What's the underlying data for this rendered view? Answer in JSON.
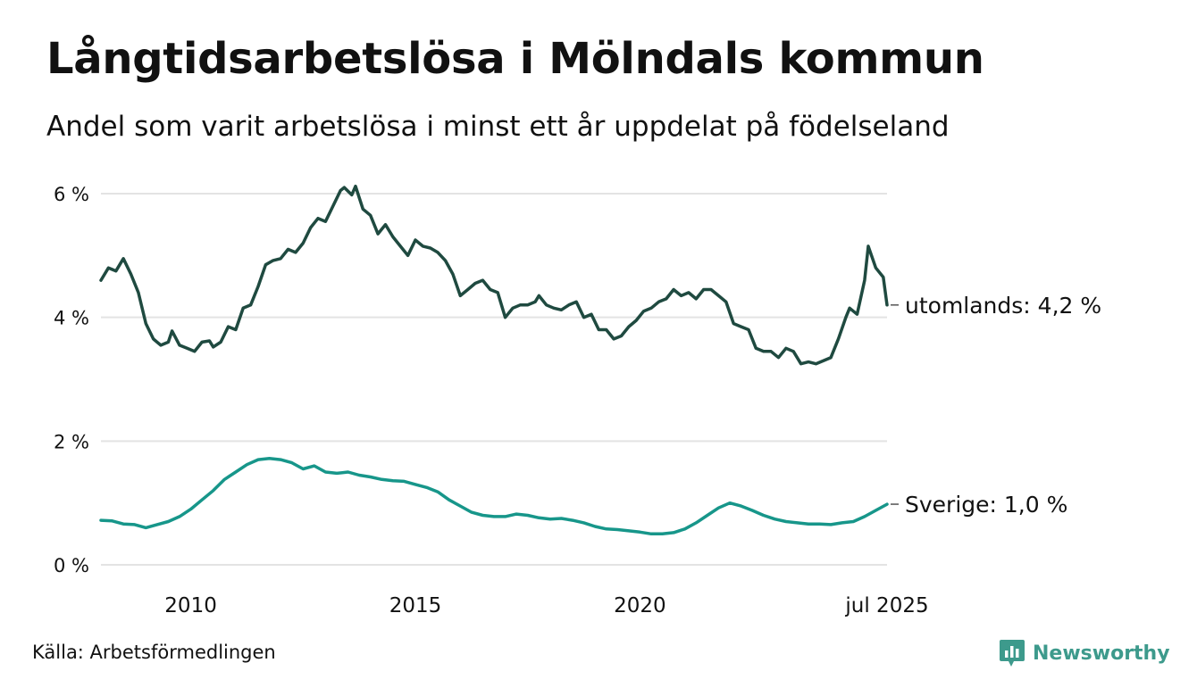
{
  "title": "Långtidsarbetslösa i Mölndals kommun",
  "subtitle": "Andel som varit arbetslösa i minst ett år uppdelat på födelseland",
  "source": "Källa: Arbetsförmedlingen",
  "brand": "Newsworthy",
  "colors": {
    "utomlands": "#1f4a40",
    "sverige": "#17968a",
    "grid": "#e3e3e3",
    "brand": "#3d9a8c"
  },
  "chart_data": {
    "type": "line",
    "title": "Långtidsarbetslösa i Mölndals kommun",
    "subtitle": "Andel som varit arbetslösa i minst ett år uppdelat på födelseland",
    "xlabel": "",
    "ylabel": "",
    "xlim": [
      "2008-01",
      "2025-07"
    ],
    "ylim": [
      0,
      6
    ],
    "grid": true,
    "y_ticks": [
      {
        "value": 0,
        "label": "0 %"
      },
      {
        "value": 2,
        "label": "2 %"
      },
      {
        "value": 4,
        "label": "4 %"
      },
      {
        "value": 6,
        "label": "6 %"
      }
    ],
    "x_ticks": [
      {
        "value": "2010-01",
        "label": "2010"
      },
      {
        "value": "2015-01",
        "label": "2015"
      },
      {
        "value": "2020-01",
        "label": "2020"
      },
      {
        "value": "2025-07",
        "label": "jul 2025"
      }
    ],
    "series": [
      {
        "key": "utomlands",
        "name": "utomlands",
        "end_label": "utomlands: 4,2 %",
        "points": [
          [
            "2008-01",
            4.6
          ],
          [
            "2008-03",
            4.8
          ],
          [
            "2008-05",
            4.75
          ],
          [
            "2008-07",
            4.95
          ],
          [
            "2008-09",
            4.7
          ],
          [
            "2008-11",
            4.4
          ],
          [
            "2009-01",
            3.9
          ],
          [
            "2009-03",
            3.65
          ],
          [
            "2009-05",
            3.55
          ],
          [
            "2009-07",
            3.6
          ],
          [
            "2009-08",
            3.78
          ],
          [
            "2009-10",
            3.55
          ],
          [
            "2009-12",
            3.5
          ],
          [
            "2010-02",
            3.45
          ],
          [
            "2010-04",
            3.6
          ],
          [
            "2010-06",
            3.62
          ],
          [
            "2010-07",
            3.52
          ],
          [
            "2010-09",
            3.6
          ],
          [
            "2010-11",
            3.85
          ],
          [
            "2011-01",
            3.8
          ],
          [
            "2011-03",
            4.15
          ],
          [
            "2011-05",
            4.2
          ],
          [
            "2011-07",
            4.5
          ],
          [
            "2011-09",
            4.85
          ],
          [
            "2011-11",
            4.92
          ],
          [
            "2012-01",
            4.95
          ],
          [
            "2012-03",
            5.1
          ],
          [
            "2012-05",
            5.05
          ],
          [
            "2012-07",
            5.2
          ],
          [
            "2012-09",
            5.45
          ],
          [
            "2012-11",
            5.6
          ],
          [
            "2013-01",
            5.55
          ],
          [
            "2013-03",
            5.8
          ],
          [
            "2013-05",
            6.05
          ],
          [
            "2013-06",
            6.1
          ],
          [
            "2013-08",
            5.98
          ],
          [
            "2013-09",
            6.12
          ],
          [
            "2013-11",
            5.75
          ],
          [
            "2014-01",
            5.65
          ],
          [
            "2014-03",
            5.35
          ],
          [
            "2014-05",
            5.5
          ],
          [
            "2014-07",
            5.3
          ],
          [
            "2014-09",
            5.15
          ],
          [
            "2014-11",
            5.0
          ],
          [
            "2015-01",
            5.25
          ],
          [
            "2015-03",
            5.15
          ],
          [
            "2015-05",
            5.12
          ],
          [
            "2015-07",
            5.05
          ],
          [
            "2015-09",
            4.92
          ],
          [
            "2015-11",
            4.7
          ],
          [
            "2016-01",
            4.35
          ],
          [
            "2016-03",
            4.45
          ],
          [
            "2016-05",
            4.55
          ],
          [
            "2016-07",
            4.6
          ],
          [
            "2016-09",
            4.45
          ],
          [
            "2016-11",
            4.4
          ],
          [
            "2017-01",
            4.0
          ],
          [
            "2017-03",
            4.15
          ],
          [
            "2017-05",
            4.2
          ],
          [
            "2017-07",
            4.2
          ],
          [
            "2017-09",
            4.25
          ],
          [
            "2017-10",
            4.35
          ],
          [
            "2017-12",
            4.2
          ],
          [
            "2018-02",
            4.15
          ],
          [
            "2018-04",
            4.12
          ],
          [
            "2018-06",
            4.2
          ],
          [
            "2018-08",
            4.25
          ],
          [
            "2018-10",
            4.0
          ],
          [
            "2018-12",
            4.05
          ],
          [
            "2019-02",
            3.8
          ],
          [
            "2019-04",
            3.8
          ],
          [
            "2019-06",
            3.65
          ],
          [
            "2019-08",
            3.7
          ],
          [
            "2019-10",
            3.85
          ],
          [
            "2019-12",
            3.95
          ],
          [
            "2020-02",
            4.1
          ],
          [
            "2020-04",
            4.15
          ],
          [
            "2020-06",
            4.25
          ],
          [
            "2020-08",
            4.3
          ],
          [
            "2020-10",
            4.45
          ],
          [
            "2020-12",
            4.35
          ],
          [
            "2021-02",
            4.4
          ],
          [
            "2021-04",
            4.3
          ],
          [
            "2021-06",
            4.45
          ],
          [
            "2021-08",
            4.45
          ],
          [
            "2021-10",
            4.35
          ],
          [
            "2021-12",
            4.25
          ],
          [
            "2022-02",
            3.9
          ],
          [
            "2022-04",
            3.85
          ],
          [
            "2022-06",
            3.8
          ],
          [
            "2022-08",
            3.5
          ],
          [
            "2022-10",
            3.45
          ],
          [
            "2022-12",
            3.45
          ],
          [
            "2023-02",
            3.35
          ],
          [
            "2023-04",
            3.5
          ],
          [
            "2023-06",
            3.45
          ],
          [
            "2023-08",
            3.25
          ],
          [
            "2023-10",
            3.28
          ],
          [
            "2023-12",
            3.25
          ],
          [
            "2024-02",
            3.3
          ],
          [
            "2024-04",
            3.35
          ],
          [
            "2024-06",
            3.65
          ],
          [
            "2024-08",
            4.0
          ],
          [
            "2024-09",
            4.15
          ],
          [
            "2024-11",
            4.05
          ],
          [
            "2025-01",
            4.6
          ],
          [
            "2025-02",
            5.15
          ],
          [
            "2025-04",
            4.8
          ],
          [
            "2025-06",
            4.65
          ],
          [
            "2025-07",
            4.2
          ]
        ]
      },
      {
        "key": "sverige",
        "name": "Sverige",
        "end_label": "Sverige: 1,0 %",
        "points": [
          [
            "2008-01",
            0.72
          ],
          [
            "2008-04",
            0.71
          ],
          [
            "2008-07",
            0.66
          ],
          [
            "2008-10",
            0.65
          ],
          [
            "2009-01",
            0.6
          ],
          [
            "2009-04",
            0.65
          ],
          [
            "2009-07",
            0.7
          ],
          [
            "2009-10",
            0.78
          ],
          [
            "2010-01",
            0.9
          ],
          [
            "2010-04",
            1.05
          ],
          [
            "2010-07",
            1.2
          ],
          [
            "2010-10",
            1.38
          ],
          [
            "2011-01",
            1.5
          ],
          [
            "2011-04",
            1.62
          ],
          [
            "2011-07",
            1.7
          ],
          [
            "2011-10",
            1.72
          ],
          [
            "2012-01",
            1.7
          ],
          [
            "2012-04",
            1.65
          ],
          [
            "2012-07",
            1.55
          ],
          [
            "2012-10",
            1.6
          ],
          [
            "2013-01",
            1.5
          ],
          [
            "2013-04",
            1.48
          ],
          [
            "2013-07",
            1.5
          ],
          [
            "2013-10",
            1.45
          ],
          [
            "2014-01",
            1.42
          ],
          [
            "2014-04",
            1.38
          ],
          [
            "2014-07",
            1.36
          ],
          [
            "2014-10",
            1.35
          ],
          [
            "2015-01",
            1.3
          ],
          [
            "2015-04",
            1.25
          ],
          [
            "2015-07",
            1.18
          ],
          [
            "2015-10",
            1.05
          ],
          [
            "2016-01",
            0.95
          ],
          [
            "2016-04",
            0.85
          ],
          [
            "2016-07",
            0.8
          ],
          [
            "2016-10",
            0.78
          ],
          [
            "2017-01",
            0.78
          ],
          [
            "2017-04",
            0.82
          ],
          [
            "2017-07",
            0.8
          ],
          [
            "2017-10",
            0.76
          ],
          [
            "2018-01",
            0.74
          ],
          [
            "2018-04",
            0.75
          ],
          [
            "2018-07",
            0.72
          ],
          [
            "2018-10",
            0.68
          ],
          [
            "2019-01",
            0.62
          ],
          [
            "2019-04",
            0.58
          ],
          [
            "2019-07",
            0.57
          ],
          [
            "2019-10",
            0.55
          ],
          [
            "2020-01",
            0.53
          ],
          [
            "2020-04",
            0.5
          ],
          [
            "2020-07",
            0.5
          ],
          [
            "2020-10",
            0.52
          ],
          [
            "2021-01",
            0.58
          ],
          [
            "2021-04",
            0.68
          ],
          [
            "2021-07",
            0.8
          ],
          [
            "2021-10",
            0.92
          ],
          [
            "2022-01",
            1.0
          ],
          [
            "2022-04",
            0.95
          ],
          [
            "2022-07",
            0.88
          ],
          [
            "2022-10",
            0.8
          ],
          [
            "2023-01",
            0.74
          ],
          [
            "2023-04",
            0.7
          ],
          [
            "2023-07",
            0.68
          ],
          [
            "2023-10",
            0.66
          ],
          [
            "2024-01",
            0.66
          ],
          [
            "2024-04",
            0.65
          ],
          [
            "2024-07",
            0.68
          ],
          [
            "2024-10",
            0.7
          ],
          [
            "2025-01",
            0.78
          ],
          [
            "2025-04",
            0.88
          ],
          [
            "2025-07",
            0.98
          ]
        ]
      }
    ]
  }
}
